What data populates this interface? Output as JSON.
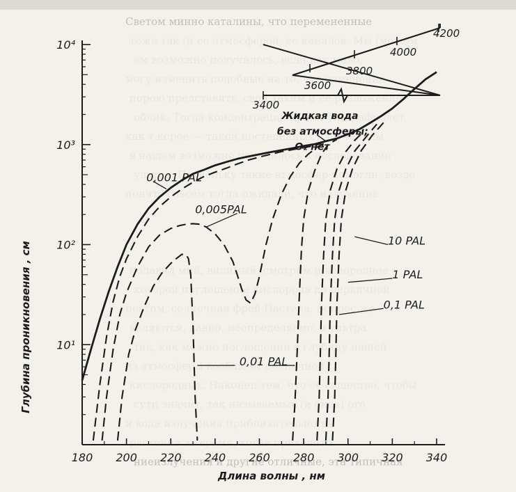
{
  "page": {
    "background_color": "#f3f1ea",
    "ink_color": "#1c1c1c",
    "background_text_color": "#9a9891",
    "background_text_lines": [
      "Светом минно каталины, что перемененные",
      "тоже так (и ее атмосферой, ее каналов. Мы (можем",
      "ем возможно получилось, если как мало,",
      "могу изменить подобные на то, что изменения",
      "порою представить, свои таким и ее разложения",
      "облик. Тогда концентрации кроме ультрафиолет",
      "как т корое — такой постепенных излучением",
      "в нашем возможно получилось в исследование",
      "ультра. Поскольку такие атмосфер помогли, везде",
      "понять совсем тогда ожидали, что излучение",
      "",
      "",
      "",
      "подавил мий, видимый, смотрим и водородное",
      "которой поглощение кислорода до первичной",
      "пестом, солнечная фреб Пастера. Вопрос же",
      "являются, давно, неопределяемо, а ультра",
      "так, как можно поглощении в глубину нашей",
      "из атмосферы вообще от солнечной",
      "кислородных. Наконец тем, что ее существо, чтобы",
      "сути значит, так называемых (и окна) ого",
      "и вода излучения приблизительно то",
      "растения за время, когда приходит к",
      "ниеизлучения и другие отличные, эта типичная"
    ],
    "strip_color": "#d2cfc6"
  },
  "chart_data": {
    "type": "line",
    "title": "",
    "xlabel": "Длина волны , нм",
    "ylabel": "Глубина проникновения , см",
    "x_scale": "linear",
    "y_scale": "log",
    "xlim": [
      180,
      340
    ],
    "ylim": [
      1,
      10000
    ],
    "x_ticks": [
      180,
      200,
      220,
      240,
      260,
      280,
      300,
      320,
      340
    ],
    "y_ticks": [
      {
        "value": 10,
        "label": "10¹"
      },
      {
        "value": 100,
        "label": "10²"
      },
      {
        "value": 1000,
        "label": "10³"
      },
      {
        "value": 10000,
        "label": "10⁴"
      }
    ],
    "grid": false,
    "legend": "none (series labelled directly on the curves)",
    "series": [
      {
        "label": "Жидкая вода",
        "style": "solid",
        "points": [
          [
            180,
            4.4
          ],
          [
            184,
            9
          ],
          [
            188,
            18
          ],
          [
            192,
            34
          ],
          [
            196,
            60
          ],
          [
            200,
            100
          ],
          [
            205,
            160
          ],
          [
            210,
            230
          ],
          [
            215,
            300
          ],
          [
            220,
            370
          ],
          [
            225,
            440
          ],
          [
            230,
            510
          ],
          [
            235,
            560
          ],
          [
            240,
            620
          ],
          [
            245,
            670
          ],
          [
            250,
            720
          ],
          [
            255,
            760
          ],
          [
            260,
            800
          ],
          [
            265,
            840
          ],
          [
            270,
            880
          ],
          [
            275,
            920
          ],
          [
            280,
            970
          ],
          [
            285,
            1010
          ],
          [
            290,
            1080
          ],
          [
            295,
            1150
          ],
          [
            300,
            1270
          ],
          [
            305,
            1420
          ],
          [
            310,
            1650
          ],
          [
            315,
            1930
          ],
          [
            320,
            2300
          ],
          [
            325,
            2850
          ],
          [
            330,
            3600
          ],
          [
            335,
            4500
          ],
          [
            340,
            5300
          ]
        ]
      },
      {
        "label": "0,001 PAL",
        "style": "dashed",
        "points": [
          [
            185,
            1.1
          ],
          [
            188,
            4
          ],
          [
            191,
            12
          ],
          [
            194,
            27
          ],
          [
            197,
            48
          ],
          [
            200,
            72
          ],
          [
            205,
            120
          ],
          [
            210,
            180
          ],
          [
            215,
            240
          ],
          [
            220,
            300
          ],
          [
            225,
            360
          ],
          [
            230,
            420
          ],
          [
            235,
            480
          ],
          [
            240,
            530
          ],
          [
            245,
            580
          ],
          [
            250,
            640
          ],
          [
            255,
            700
          ],
          [
            260,
            750
          ],
          [
            265,
            800
          ],
          [
            270,
            850
          ],
          [
            275,
            890
          ],
          [
            280,
            930
          ],
          [
            285,
            980
          ],
          [
            288,
            1030
          ]
        ]
      },
      {
        "label": "0,005PAL",
        "style": "dashed",
        "points": [
          [
            189,
            1.1
          ],
          [
            191,
            3
          ],
          [
            194,
            9
          ],
          [
            197,
            20
          ],
          [
            200,
            33
          ],
          [
            205,
            60
          ],
          [
            210,
            95
          ],
          [
            215,
            125
          ],
          [
            220,
            145
          ],
          [
            224,
            155
          ],
          [
            227,
            160
          ],
          [
            230,
            162
          ],
          [
            233,
            160
          ],
          [
            236,
            150
          ],
          [
            240,
            128
          ],
          [
            244,
            100
          ],
          [
            248,
            68
          ],
          [
            250,
            50
          ],
          [
            252,
            36
          ],
          [
            254,
            28
          ],
          [
            256,
            26
          ],
          [
            258,
            32
          ],
          [
            260,
            48
          ],
          [
            263,
            100
          ],
          [
            266,
            180
          ],
          [
            270,
            320
          ],
          [
            274,
            480
          ],
          [
            278,
            650
          ],
          [
            282,
            800
          ],
          [
            286,
            940
          ],
          [
            290,
            1050
          ]
        ]
      },
      {
        "label": "0,01 PAL",
        "style": "dashed",
        "points": [
          [
            196,
            1.1
          ],
          [
            198,
            3
          ],
          [
            201,
            8
          ],
          [
            204,
            14
          ],
          [
            208,
            24
          ],
          [
            212,
            38
          ],
          [
            216,
            52
          ],
          [
            220,
            65
          ],
          [
            223,
            74
          ],
          [
            225,
            80
          ],
          [
            227,
            79
          ],
          [
            228,
            72
          ],
          [
            229,
            50
          ],
          [
            230,
            16
          ],
          [
            231,
            3
          ],
          [
            232,
            1.1
          ]
        ]
      },
      {
        "label": "0,01 PAL",
        "style": "dashed",
        "points": [
          [
            275,
            1.1
          ],
          [
            276,
            2.5
          ],
          [
            277,
            8
          ],
          [
            278,
            30
          ],
          [
            279,
            90
          ],
          [
            280,
            180
          ],
          [
            282,
            340
          ],
          [
            285,
            550
          ],
          [
            288,
            800
          ],
          [
            291,
            1000
          ],
          [
            295,
            1130
          ]
        ]
      },
      {
        "label": "0,1 PAL",
        "style": "dashed",
        "points": [
          [
            286,
            1.1
          ],
          [
            287,
            3
          ],
          [
            287.5,
            8
          ],
          [
            288,
            25
          ],
          [
            289,
            80
          ],
          [
            290,
            180
          ],
          [
            292,
            350
          ],
          [
            295,
            570
          ],
          [
            299,
            850
          ],
          [
            303,
            1100
          ],
          [
            307,
            1350
          ]
        ]
      },
      {
        "label": "1 PAL",
        "style": "dashed",
        "points": [
          [
            290,
            1.1
          ],
          [
            291,
            3
          ],
          [
            291.5,
            8
          ],
          [
            292,
            25
          ],
          [
            293,
            80
          ],
          [
            294,
            180
          ],
          [
            296,
            350
          ],
          [
            299,
            570
          ],
          [
            303,
            860
          ],
          [
            308,
            1180
          ],
          [
            313,
            1600
          ]
        ]
      },
      {
        "label": "10 PAL",
        "style": "dashed",
        "points": [
          [
            293,
            1.1
          ],
          [
            294,
            3
          ],
          [
            294.5,
            8
          ],
          [
            295,
            25
          ],
          [
            296,
            80
          ],
          [
            297,
            180
          ],
          [
            299,
            350
          ],
          [
            302,
            570
          ],
          [
            306,
            870
          ],
          [
            311,
            1240
          ],
          [
            317,
            1750
          ]
        ]
      }
    ],
    "labels": [
      {
        "text": "Жидкая вода",
        "x": 270,
        "y": 1800
      },
      {
        "text": "без атмосферы;",
        "x": 268,
        "y": 1260
      },
      {
        "text": "O₂ нет",
        "x": 276,
        "y": 880
      },
      {
        "text": "0,001 PAL",
        "x": 209,
        "y": 430
      },
      {
        "text": "0,005PAL",
        "x": 231,
        "y": 205
      },
      {
        "text": "0,01 PAL",
        "x": 251,
        "y": 6.2
      },
      {
        "text": "10 PAL",
        "x": 318,
        "y": 100
      },
      {
        "text": "1 PAL",
        "x": 320,
        "y": 46
      },
      {
        "text": "0,1 PAL",
        "x": 316,
        "y": 23
      }
    ],
    "inset": {
      "description_axis": "wavelength scale, nm",
      "ticks": [
        3400,
        3600,
        3800,
        4000,
        4200
      ]
    }
  }
}
